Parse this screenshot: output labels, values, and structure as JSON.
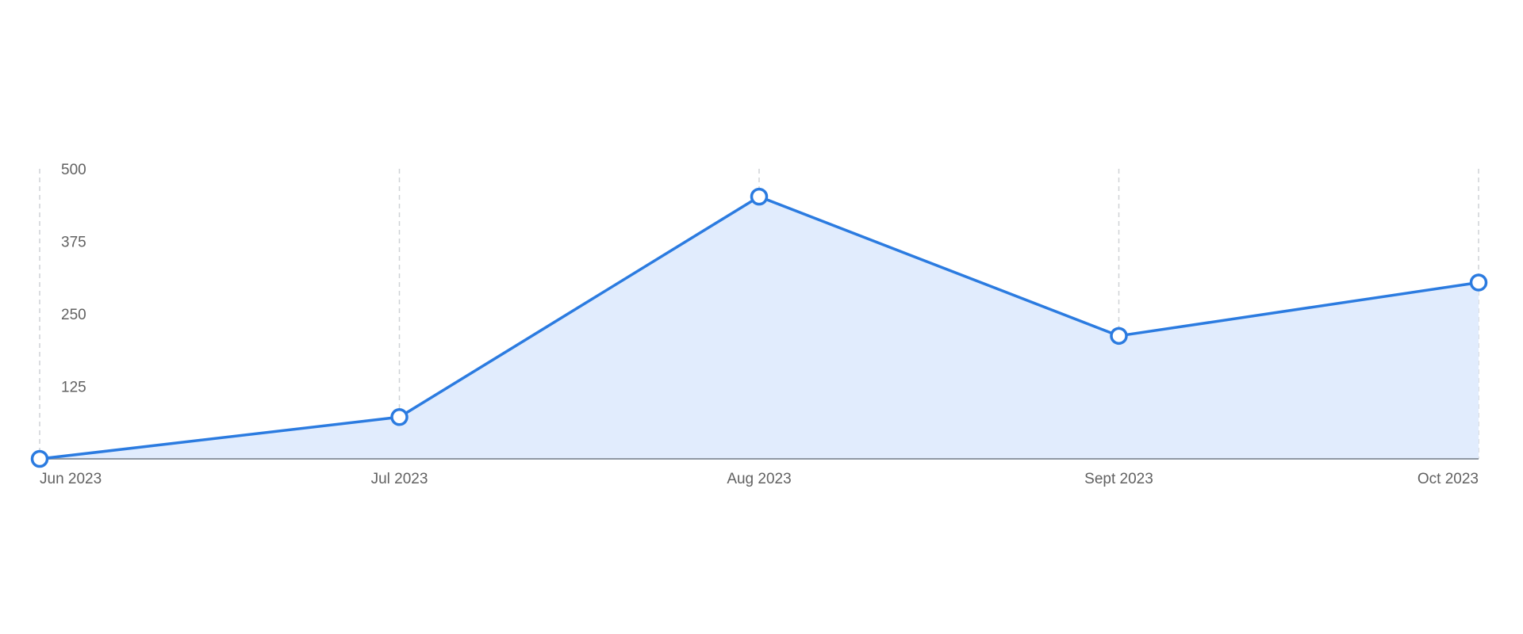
{
  "chart_data": {
    "type": "area",
    "categories": [
      "Jun 2023",
      "Jul 2023",
      "Aug 2023",
      "Sept 2023",
      "Oct 2023"
    ],
    "series": [
      {
        "values": [
          0,
          72,
          452,
          212,
          304
        ]
      }
    ],
    "yticks": [
      125,
      250,
      375,
      500
    ],
    "ylim": [
      0,
      500
    ],
    "grid": {
      "vertical": true,
      "horizontal": false,
      "style": "dashed"
    },
    "colors": {
      "line": "#2b7be0",
      "fill": "#e1ecfd",
      "grid": "#cfd2d6",
      "axis": "#8f98a3",
      "text": "#616161"
    }
  }
}
